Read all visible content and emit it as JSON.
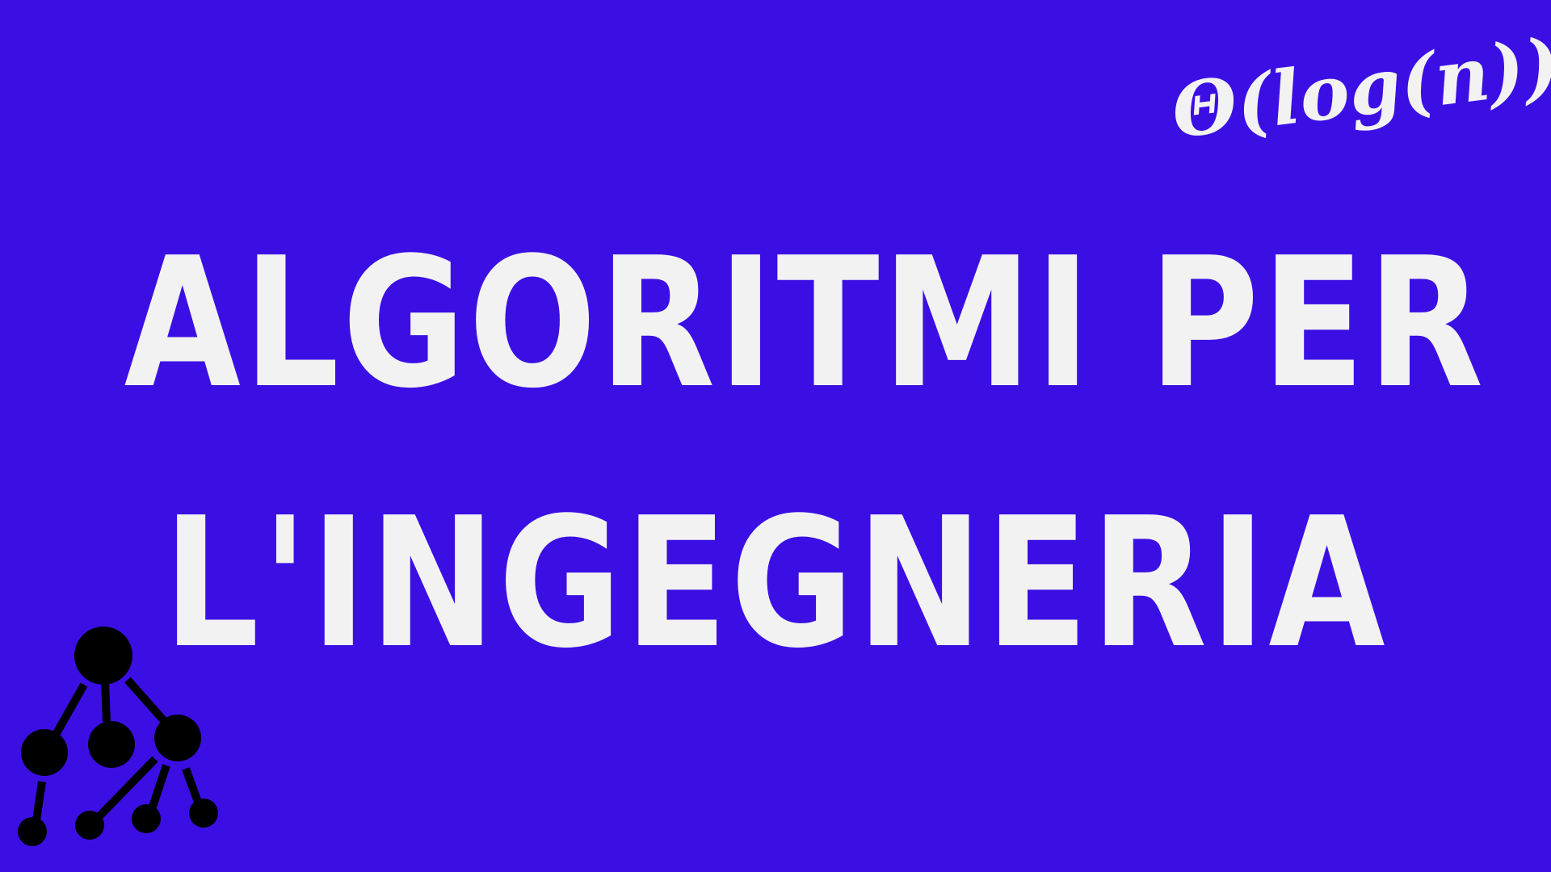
{
  "title": {
    "line1": "ALGORITMI PER",
    "line2": "L'INGEGNERIA"
  },
  "complexity_label": "Θ(log(n))",
  "colors": {
    "background": "#3b0fe4",
    "text": "#f2f2f2",
    "tree": "#000000"
  },
  "icons": {
    "tree": "tree-graph-icon"
  }
}
